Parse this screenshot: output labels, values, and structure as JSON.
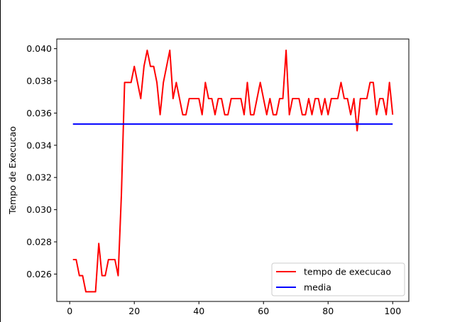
{
  "chart_data": {
    "type": "line",
    "title": "",
    "xlabel": "",
    "ylabel": "Tempo de Execucao",
    "xlim": [
      -4,
      105
    ],
    "ylim": [
      0.0243,
      0.0406
    ],
    "x_ticks": [
      0,
      20,
      40,
      60,
      80,
      100
    ],
    "y_ticks": [
      0.026,
      0.028,
      0.03,
      0.032,
      0.034,
      0.036,
      0.038,
      0.04
    ],
    "x_tick_labels": [
      "0",
      "20",
      "40",
      "60",
      "80",
      "100"
    ],
    "y_tick_labels": [
      "0.026",
      "0.028",
      "0.030",
      "0.032",
      "0.034",
      "0.036",
      "0.038",
      "0.040"
    ],
    "grid": false,
    "legend_position": "lower-right",
    "series": [
      {
        "name": "tempo de execucao",
        "color": "#ff0000",
        "x": [
          1,
          2,
          3,
          4,
          5,
          6,
          7,
          8,
          9,
          10,
          11,
          12,
          13,
          14,
          15,
          16,
          17,
          18,
          19,
          20,
          21,
          22,
          23,
          24,
          25,
          26,
          27,
          28,
          29,
          30,
          31,
          32,
          33,
          34,
          35,
          36,
          37,
          38,
          39,
          40,
          41,
          42,
          43,
          44,
          45,
          46,
          47,
          48,
          49,
          50,
          51,
          52,
          53,
          54,
          55,
          56,
          57,
          58,
          59,
          60,
          61,
          62,
          63,
          64,
          65,
          66,
          67,
          68,
          69,
          70,
          71,
          72,
          73,
          74,
          75,
          76,
          77,
          78,
          79,
          80,
          81,
          82,
          83,
          84,
          85,
          86,
          87,
          88,
          89,
          90,
          91,
          92,
          93,
          94,
          95,
          96,
          97,
          98,
          99,
          100
        ],
        "y": [
          0.0269,
          0.0269,
          0.0259,
          0.0259,
          0.0249,
          0.0249,
          0.0249,
          0.0249,
          0.0279,
          0.0259,
          0.0259,
          0.0269,
          0.0269,
          0.0269,
          0.0259,
          0.0309,
          0.0379,
          0.0379,
          0.0379,
          0.0389,
          0.0379,
          0.0369,
          0.0389,
          0.0399,
          0.0389,
          0.0389,
          0.0379,
          0.0359,
          0.0379,
          0.0389,
          0.0399,
          0.0369,
          0.0379,
          0.0369,
          0.0359,
          0.0359,
          0.0369,
          0.0369,
          0.0369,
          0.0369,
          0.0359,
          0.0379,
          0.0369,
          0.0369,
          0.0359,
          0.0369,
          0.0369,
          0.0359,
          0.0359,
          0.0369,
          0.0369,
          0.0369,
          0.0369,
          0.0359,
          0.0379,
          0.0359,
          0.0359,
          0.0369,
          0.0379,
          0.0369,
          0.0359,
          0.0369,
          0.0359,
          0.0359,
          0.0369,
          0.0369,
          0.0399,
          0.0359,
          0.0369,
          0.0369,
          0.0369,
          0.0359,
          0.0359,
          0.0369,
          0.0359,
          0.0369,
          0.0369,
          0.0359,
          0.0369,
          0.0359,
          0.0369,
          0.0369,
          0.0369,
          0.0379,
          0.0369,
          0.0369,
          0.0359,
          0.0369,
          0.0349,
          0.0369,
          0.0369,
          0.0369,
          0.0379,
          0.0379,
          0.0359,
          0.0369,
          0.0369,
          0.0359,
          0.0379,
          0.0359
        ]
      },
      {
        "name": "media",
        "color": "#0000ff",
        "x": [
          1,
          100
        ],
        "y": [
          0.03532,
          0.03532
        ]
      }
    ]
  }
}
